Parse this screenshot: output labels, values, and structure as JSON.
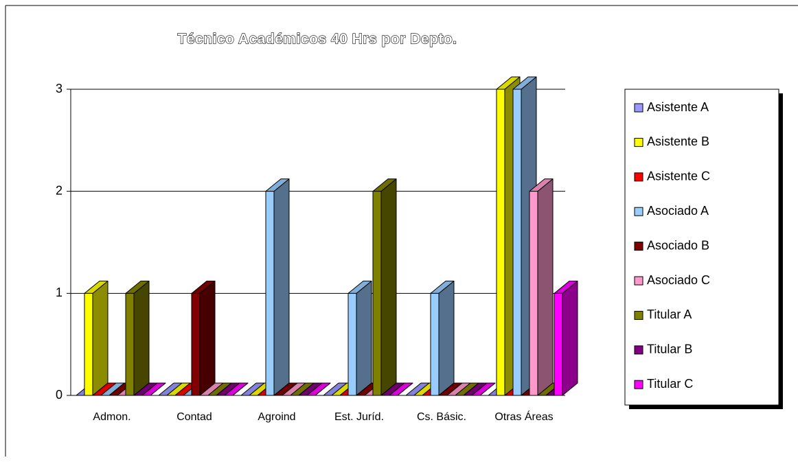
{
  "chart_data": {
    "type": "bar3d",
    "title": "Técnico Académicos 40 Hrs por Depto.",
    "categories": [
      "Admon.",
      "Contad",
      "Agroind",
      "Est. Juríd.",
      "Cs. Básic.",
      "Otras Áreas"
    ],
    "series": [
      {
        "name": "Asistente A",
        "color": "#9999ff",
        "values": [
          0,
          0,
          0,
          0,
          0,
          0
        ]
      },
      {
        "name": "Asistente B",
        "color": "#ffff00",
        "values": [
          1,
          0,
          0,
          0,
          0,
          3
        ]
      },
      {
        "name": "Asistente C",
        "color": "#ff0000",
        "values": [
          0,
          0,
          0,
          0,
          0,
          0
        ]
      },
      {
        "name": "Asociado A",
        "color": "#99ccff",
        "values": [
          0,
          0,
          2,
          1,
          1,
          3
        ]
      },
      {
        "name": "Asociado B",
        "color": "#800000",
        "values": [
          0,
          1,
          0,
          0,
          0,
          0
        ]
      },
      {
        "name": "Asociado C",
        "color": "#ff99cc",
        "values": [
          0,
          0,
          0,
          0,
          0,
          2
        ]
      },
      {
        "name": "Titular A",
        "color": "#808000",
        "values": [
          1,
          0,
          0,
          2,
          0,
          0
        ]
      },
      {
        "name": "Titular B",
        "color": "#800080",
        "values": [
          0,
          0,
          0,
          0,
          0,
          0
        ]
      },
      {
        "name": "Titular C",
        "color": "#ff00ff",
        "values": [
          0,
          0,
          0,
          0,
          0,
          1
        ]
      }
    ],
    "ylim": [
      0,
      3
    ],
    "yticks": [
      0,
      1,
      2,
      3
    ],
    "grid": true,
    "legend": "right"
  }
}
